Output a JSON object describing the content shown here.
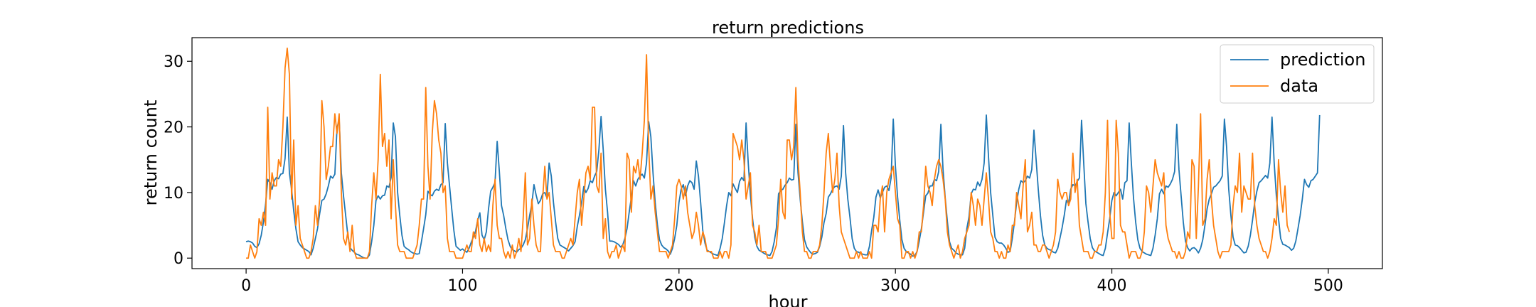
{
  "chart_data": {
    "type": "line",
    "title": "return predictions",
    "xlabel": "hour",
    "ylabel": "return count",
    "xlim": [
      -25,
      525
    ],
    "ylim": [
      -1.6,
      33.6
    ],
    "xticks": [
      0,
      100,
      200,
      300,
      400,
      500
    ],
    "yticks": [
      0,
      10,
      20,
      30
    ],
    "grid": false,
    "legend_position": "top-right",
    "series": [
      {
        "name": "prediction",
        "color": "#1f77b4",
        "start": 0,
        "step": 1,
        "values": [
          2.5,
          2.6,
          2.5,
          2.3,
          1.8,
          1.6,
          2.2,
          3.5,
          5.5,
          8.2,
          12.0,
          11.5,
          10.5,
          11.8,
          12.3,
          12.1,
          12.8,
          12.9,
          15.2,
          21.5,
          13.0,
          10.5,
          7.2,
          4.5,
          2.5,
          2.0,
          1.6,
          1.4,
          1.2,
          1.0,
          0.5,
          1.5,
          3.0,
          4.5,
          6.8,
          8.8,
          9.0,
          9.8,
          11.0,
          12.5,
          12.2,
          12.8,
          19.8,
          21.2,
          13.0,
          9.5,
          6.5,
          3.5,
          1.6,
          1.2,
          0.9,
          0.6,
          0.5,
          0.3,
          0.1,
          0.0,
          0.0,
          0.5,
          2.5,
          5.0,
          8.8,
          9.5,
          9.0,
          9.5,
          9.6,
          11.0,
          10.8,
          12.3,
          20.6,
          18.5,
          10.0,
          6.5,
          3.5,
          1.8,
          1.5,
          1.3,
          1.0,
          0.8,
          0.7,
          0.6,
          0.7,
          2.5,
          4.5,
          6.6,
          10.2,
          9.7,
          9.5,
          10.2,
          10.5,
          10.3,
          11.2,
          11.5,
          20.5,
          14.5,
          11.0,
          7.5,
          4.2,
          1.8,
          1.5,
          1.2,
          1.4,
          1.1,
          0.9,
          1.5,
          2.4,
          3.2,
          4.1,
          5.8,
          6.9,
          3.5,
          2.8,
          4.0,
          7.5,
          10.2,
          10.8,
          11.5,
          17.8,
          13.2,
          8.0,
          6.5,
          4.5,
          2.8,
          1.8,
          1.3,
          1.1,
          0.9,
          1.3,
          1.5,
          2.0,
          2.8,
          4.5,
          6.5,
          8.2,
          11.2,
          9.6,
          8.3,
          8.8,
          9.8,
          10.0,
          9.2,
          14.5,
          12.5,
          8.5,
          5.5,
          3.0,
          2.0,
          1.8,
          1.6,
          1.4,
          1.1,
          1.5,
          1.9,
          2.5,
          4.8,
          6.5,
          8.4,
          10.9,
          10.0,
          10.6,
          11.8,
          11.5,
          12.5,
          13.2,
          16.5,
          21.6,
          16.5,
          10.5,
          7.0,
          2.6,
          2.6,
          2.5,
          2.3,
          2.1,
          1.7,
          2.0,
          3.0,
          4.5,
          7.0,
          9.3,
          11.8,
          11.0,
          12.0,
          12.5,
          12.8,
          12.2,
          14.5,
          20.8,
          18.5,
          13.0,
          8.5,
          5.2,
          2.8,
          2.0,
          1.6,
          1.4,
          1.1,
          0.6,
          1.5,
          3.0,
          5.0,
          8.5,
          10.5,
          11.2,
          9.5,
          11.0,
          11.8,
          11.5,
          10.5,
          14.8,
          12.5,
          8.5,
          4.2,
          2.3,
          1.2,
          1.0,
          0.8,
          0.6,
          0.5,
          0.4,
          1.5,
          3.0,
          5.4,
          8.0,
          10.0,
          9.5,
          11.3,
          10.6,
          10.0,
          11.7,
          12.3,
          11.8,
          20.6,
          14.5,
          9.6,
          6.0,
          3.2,
          1.8,
          1.2,
          1.0,
          0.8,
          0.6,
          0.5,
          0.4,
          1.0,
          2.5,
          4.6,
          9.8,
          10.3,
          10.5,
          11.1,
          11.5,
          12.2,
          11.9,
          12.0,
          20.4,
          13.0,
          9.0,
          5.6,
          2.8,
          1.7,
          1.2,
          0.8,
          0.6,
          0.7,
          0.9,
          1.8,
          3.2,
          5.4,
          6.8,
          9.3,
          9.8,
          10.5,
          10.9,
          11.0,
          10.5,
          12.5,
          20.2,
          13.0,
          9.0,
          6.2,
          3.0,
          1.5,
          1.0,
          0.9,
          0.7,
          0.6,
          0.5,
          0.5,
          1.8,
          4.2,
          6.2,
          9.3,
          10.4,
          9.2,
          10.0,
          10.8,
          11.0,
          10.3,
          12.2,
          21.2,
          14.0,
          9.3,
          5.8,
          2.8,
          1.5,
          1.0,
          0.8,
          0.6,
          0.3,
          0.4,
          1.0,
          2.6,
          4.5,
          7.0,
          9.5,
          9.9,
          11.0,
          11.0,
          12.0,
          11.8,
          13.2,
          20.4,
          13.5,
          9.2,
          5.6,
          2.5,
          1.5,
          1.2,
          0.8,
          0.6,
          0.5,
          0.5,
          1.5,
          4.5,
          6.3,
          9.8,
          10.5,
          10.4,
          11.6,
          11.0,
          12.0,
          14.5,
          21.8,
          15.5,
          10.0,
          6.5,
          3.2,
          2.5,
          2.3,
          2.3,
          2.0,
          1.5,
          0.9,
          1.0,
          3.0,
          5.5,
          8.5,
          10.5,
          11.8,
          11.5,
          11.8,
          12.5,
          12.2,
          13.5,
          19.5,
          15.0,
          10.5,
          6.5,
          3.5,
          2.0,
          1.5,
          1.3,
          1.2,
          0.9,
          0.8,
          1.5,
          3.0,
          4.6,
          6.5,
          8.8,
          8.3,
          10.5,
          11.2,
          11.0,
          11.7,
          12.2,
          21.0,
          14.5,
          8.3,
          5.5,
          3.0,
          1.6,
          1.1,
          0.9,
          0.7,
          0.5,
          0.4,
          1.5,
          3.8,
          6.0,
          8.8,
          10.0,
          9.5,
          10.0,
          10.5,
          9.0,
          11.5,
          11.8,
          20.6,
          14.5,
          9.2,
          5.5,
          2.8,
          1.5,
          1.0,
          0.8,
          0.6,
          0.5,
          0.4,
          1.5,
          3.5,
          6.0,
          9.8,
          10.5,
          9.8,
          11.0,
          10.8,
          11.3,
          12.0,
          13.2,
          20.4,
          13.5,
          9.5,
          5.5,
          2.6,
          1.6,
          1.1,
          1.5,
          1.6,
          1.3,
          0.8,
          1.5,
          2.8,
          5.0,
          7.5,
          9.0,
          9.8,
          10.8,
          11.0,
          11.4,
          11.8,
          12.5,
          21.2,
          17.0,
          10.5,
          6.5,
          3.2,
          2.0,
          1.9,
          1.6,
          1.2,
          0.8,
          0.9,
          1.8,
          3.5,
          5.8,
          8.5,
          10.2,
          11.5,
          11.8,
          12.2,
          12.6,
          12.2,
          14.5,
          21.5,
          14.5,
          9.5,
          6.0,
          3.0,
          2.1,
          2.0,
          1.8,
          1.6,
          1.2,
          1.5,
          2.6,
          4.5,
          6.5,
          9.0,
          12.0,
          11.2,
          10.8,
          11.8,
          12.0,
          12.5,
          13.0,
          21.8
        ]
      },
      {
        "name": "data",
        "color": "#ff7f0e",
        "start": 0,
        "step": 1,
        "values": [
          0,
          0,
          2,
          1,
          0,
          1,
          6,
          5,
          7,
          5,
          23,
          9,
          13,
          11,
          11,
          15,
          14,
          20,
          29,
          32,
          28,
          9,
          18,
          5,
          8,
          3,
          2,
          1,
          0,
          0,
          1,
          3,
          8,
          5,
          9,
          24,
          20,
          12,
          14,
          17,
          17,
          22,
          19,
          22,
          10,
          3,
          2,
          4,
          1,
          5,
          1,
          0,
          0,
          0,
          0,
          0,
          0,
          1,
          8,
          13,
          9,
          15,
          28,
          17,
          19,
          14,
          18,
          6,
          15,
          8,
          2,
          1,
          1,
          1,
          0,
          0,
          0,
          0,
          1,
          2,
          5,
          9,
          9,
          26,
          14,
          9,
          19,
          24,
          22,
          18,
          16,
          10,
          11,
          3,
          1,
          1,
          1,
          0,
          0,
          0,
          0,
          1,
          2,
          1,
          1,
          4,
          3,
          6,
          2,
          1,
          3,
          1,
          2,
          1,
          8,
          12,
          5,
          3,
          3,
          1,
          0,
          1,
          0,
          2,
          0,
          1,
          3,
          1,
          6,
          13,
          2,
          3,
          9,
          5,
          2,
          1,
          1,
          9,
          14,
          9,
          10,
          6,
          2,
          1,
          1,
          1,
          0,
          0,
          1,
          2,
          3,
          2,
          6,
          10,
          12,
          5,
          9,
          13,
          14,
          12,
          23,
          23,
          11,
          10,
          16,
          3,
          6,
          1,
          0,
          1,
          1,
          2,
          0,
          1,
          2,
          1,
          16,
          15,
          7,
          14,
          13,
          15,
          12,
          16,
          21,
          31,
          17,
          9,
          11,
          7,
          4,
          1,
          1,
          1,
          1,
          0,
          1,
          2,
          6,
          11,
          12,
          11,
          9,
          11,
          7,
          5,
          3,
          4,
          7,
          5,
          2,
          4,
          3,
          1,
          1,
          1,
          0,
          0,
          0,
          1,
          0,
          1,
          1,
          0,
          2,
          19,
          18,
          17,
          15,
          18,
          15,
          9,
          11,
          13,
          5,
          4,
          2,
          5,
          1,
          1,
          1,
          0,
          0,
          0,
          1,
          2,
          6,
          12,
          7,
          6,
          18,
          18,
          15,
          17,
          26,
          15,
          10,
          4,
          1,
          1,
          0,
          0,
          1,
          1,
          1,
          2,
          5,
          10,
          16,
          19,
          14,
          10,
          12,
          16,
          8,
          4,
          3,
          2,
          1,
          0,
          0,
          0,
          1,
          0,
          1,
          0,
          0,
          0,
          1,
          0,
          5,
          5,
          4,
          9,
          11,
          4,
          10,
          12,
          13,
          14,
          10,
          6,
          5,
          0,
          0,
          1,
          1,
          0,
          1,
          0,
          1,
          4,
          4,
          8,
          14,
          11,
          10,
          8,
          12,
          14,
          15,
          14,
          12,
          9,
          4,
          2,
          1,
          0,
          1,
          2,
          0,
          1,
          3,
          4,
          5,
          10,
          8,
          5,
          9,
          8,
          5,
          9,
          13,
          9,
          4,
          3,
          1,
          1,
          0,
          1,
          0,
          0,
          2,
          1,
          5,
          5,
          10,
          8,
          6,
          11,
          15,
          4,
          5,
          7,
          2,
          2,
          1,
          1,
          2,
          2,
          1,
          0,
          1,
          2,
          4,
          12,
          10,
          9,
          10,
          10,
          8,
          9,
          16,
          10,
          12,
          5,
          3,
          1,
          1,
          1,
          0,
          0,
          1,
          1,
          2,
          2,
          4,
          10,
          21,
          7,
          3,
          3,
          21,
          16,
          5,
          4,
          4,
          2,
          0,
          1,
          1,
          1,
          0,
          0,
          1,
          4,
          11,
          10,
          7,
          11,
          15,
          13,
          12,
          11,
          13,
          5,
          3,
          2,
          1,
          1,
          0,
          1,
          0,
          0,
          1,
          4,
          3,
          15,
          14,
          3,
          11,
          22,
          5,
          6,
          12,
          15,
          9,
          5,
          3,
          1,
          0,
          1,
          1,
          1,
          1,
          2,
          8,
          11,
          10,
          16,
          7,
          11,
          10,
          9,
          9,
          16,
          8,
          5,
          3,
          2,
          1,
          1,
          0,
          1,
          3,
          6,
          5,
          15,
          10,
          7,
          11,
          5,
          4
        ]
      }
    ]
  }
}
